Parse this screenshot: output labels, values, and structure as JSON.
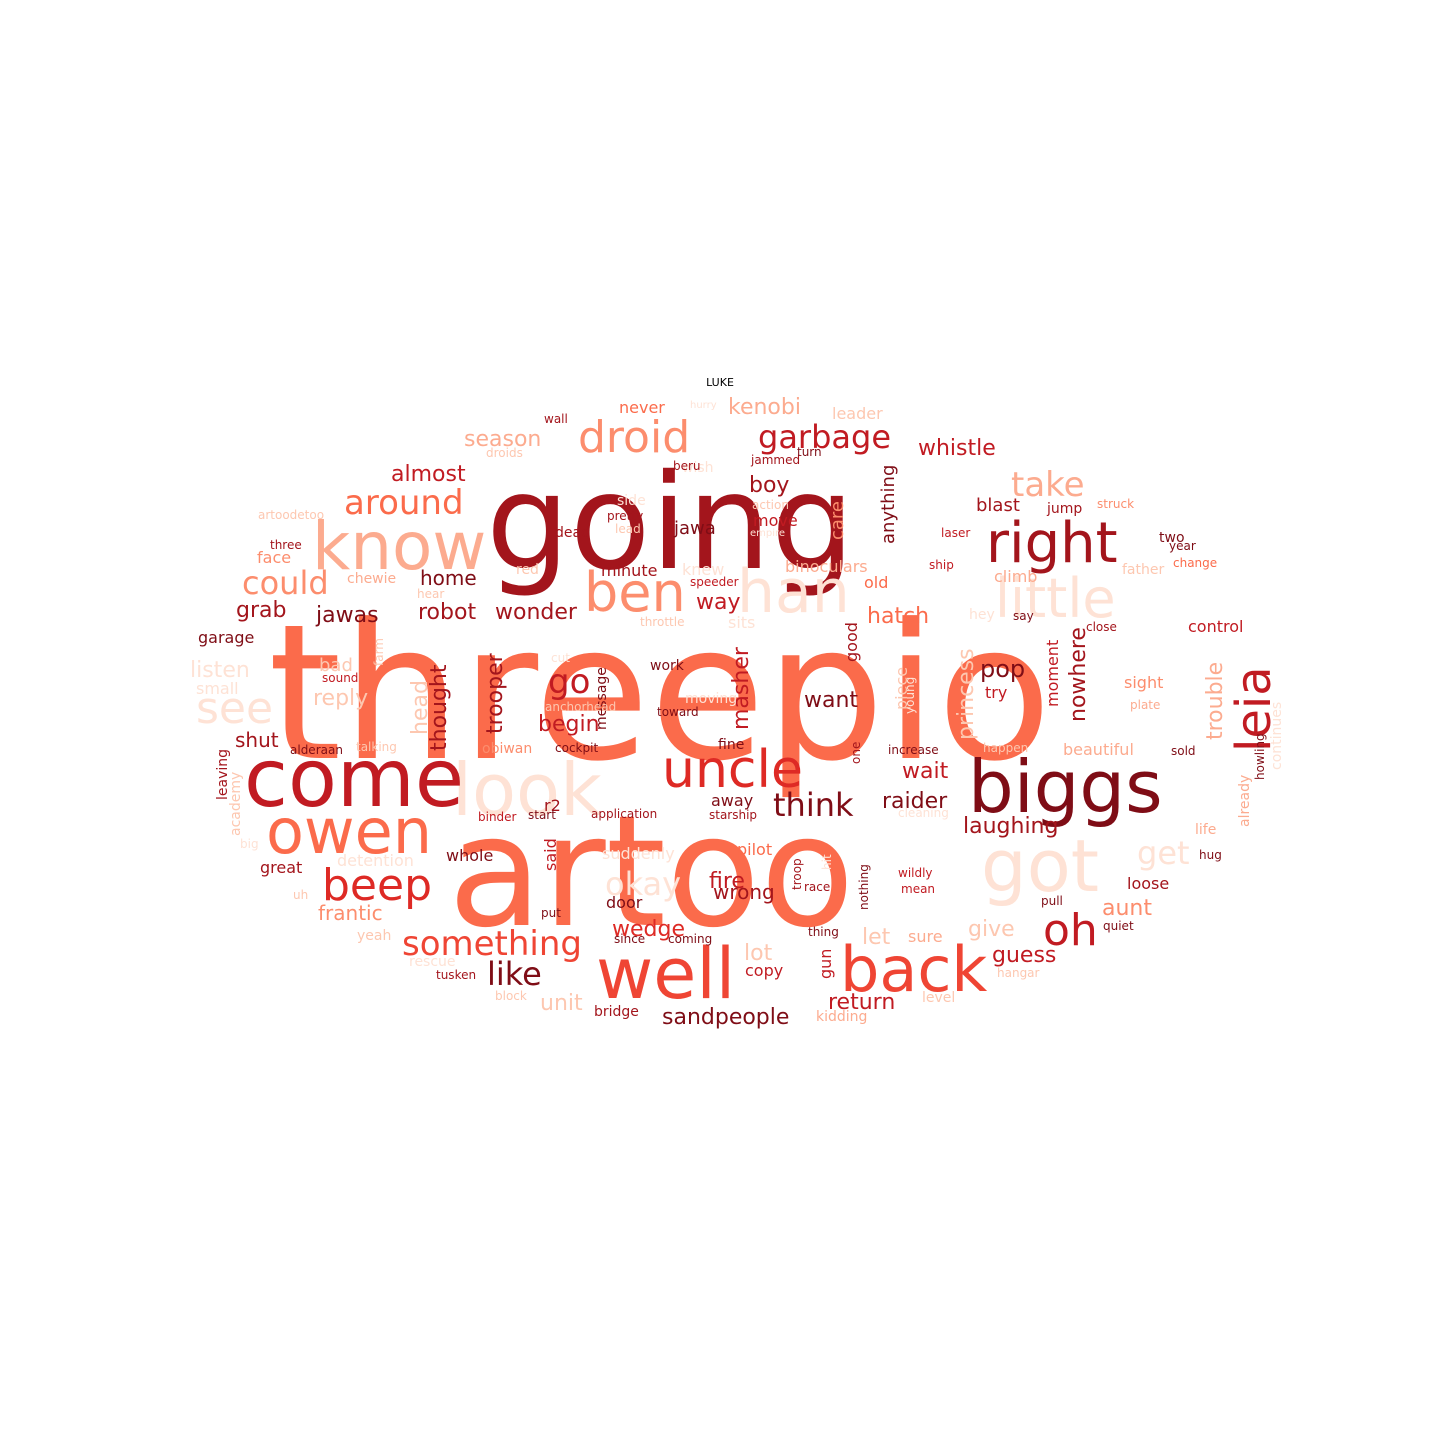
{
  "title": "LUKE",
  "palette": {
    "d1": "#7f0d16",
    "d2": "#a3151c",
    "d3": "#c11b22",
    "r1": "#de2a25",
    "r2": "#ef4534",
    "r3": "#fb6b4b",
    "s1": "#fc8d6d",
    "s2": "#fcab8f",
    "s3": "#fdc7b0",
    "p1": "#fee2d5"
  },
  "words": [
    {
      "text": "threepio",
      "color": "r3"
    },
    {
      "text": "artoo",
      "color": "r3"
    },
    {
      "text": "going",
      "color": "d2"
    },
    {
      "text": "look",
      "color": "p1"
    },
    {
      "text": "well",
      "color": "r2"
    },
    {
      "text": "know",
      "color": "s2"
    },
    {
      "text": "biggs",
      "color": "d1"
    },
    {
      "text": "come",
      "color": "d3"
    },
    {
      "text": "back",
      "color": "r2"
    },
    {
      "text": "han",
      "color": "p1"
    },
    {
      "text": "got",
      "color": "p1"
    },
    {
      "text": "owen",
      "color": "r3"
    },
    {
      "text": "little",
      "color": "p1"
    },
    {
      "text": "right",
      "color": "d2"
    },
    {
      "text": "uncle",
      "color": "r1"
    },
    {
      "text": "ben",
      "color": "s1"
    },
    {
      "text": "droid",
      "color": "s1"
    },
    {
      "text": "leia",
      "color": "d3"
    },
    {
      "text": "beep",
      "color": "r1"
    },
    {
      "text": "oh",
      "color": "d3"
    },
    {
      "text": "see",
      "color": "p1"
    },
    {
      "text": "around",
      "color": "r3"
    },
    {
      "text": "something",
      "color": "r2"
    },
    {
      "text": "garbage",
      "color": "d3"
    },
    {
      "text": "take",
      "color": "s2"
    },
    {
      "text": "think",
      "color": "d1"
    },
    {
      "text": "like",
      "color": "d1"
    },
    {
      "text": "go",
      "color": "d3"
    },
    {
      "text": "could",
      "color": "s1"
    },
    {
      "text": "okay",
      "color": "p1"
    },
    {
      "text": "get",
      "color": "p1"
    },
    {
      "text": "whistle",
      "color": "d3"
    },
    {
      "text": "return",
      "color": "d3"
    },
    {
      "text": "sandpeople",
      "color": "d1"
    },
    {
      "text": "raider",
      "color": "d1"
    },
    {
      "text": "laughing",
      "color": "d2"
    },
    {
      "text": "kenobi",
      "color": "s2"
    },
    {
      "text": "season",
      "color": "s2"
    },
    {
      "text": "almost",
      "color": "d3"
    },
    {
      "text": "boy",
      "color": "d2"
    },
    {
      "text": "hatch",
      "color": "r3"
    },
    {
      "text": "wonder",
      "color": "d2"
    },
    {
      "text": "robot",
      "color": "d2"
    },
    {
      "text": "jawas",
      "color": "d1"
    },
    {
      "text": "home",
      "color": "d1"
    },
    {
      "text": "way",
      "color": "d3"
    },
    {
      "text": "grab",
      "color": "d2"
    },
    {
      "text": "pop",
      "color": "d1"
    },
    {
      "text": "want",
      "color": "d1"
    },
    {
      "text": "begin",
      "color": "d3"
    },
    {
      "text": "wait",
      "color": "d3"
    },
    {
      "text": "trouble",
      "color": "s2"
    },
    {
      "text": "princess",
      "color": "s3"
    },
    {
      "text": "nowhere",
      "color": "d2"
    },
    {
      "text": "masher",
      "color": "d3"
    },
    {
      "text": "trooper",
      "color": "d2"
    },
    {
      "text": "thought",
      "color": "d2"
    },
    {
      "text": "head",
      "color": "s3"
    },
    {
      "text": "fire",
      "color": "d3"
    },
    {
      "text": "wrong",
      "color": "d2"
    },
    {
      "text": "lot",
      "color": "s3"
    },
    {
      "text": "wedge",
      "color": "r1"
    },
    {
      "text": "guess",
      "color": "d3"
    },
    {
      "text": "give",
      "color": "s3"
    },
    {
      "text": "aunt",
      "color": "s1"
    },
    {
      "text": "let",
      "color": "s3"
    },
    {
      "text": "unit",
      "color": "s3"
    },
    {
      "text": "frantic",
      "color": "s1"
    },
    {
      "text": "reply",
      "color": "s3"
    },
    {
      "text": "listen",
      "color": "p1"
    },
    {
      "text": "shut",
      "color": "d2"
    },
    {
      "text": "blast",
      "color": "d2"
    },
    {
      "text": "anything",
      "color": "d1"
    },
    {
      "text": "care",
      "color": "s1"
    },
    {
      "text": "jawa",
      "color": "d1"
    },
    {
      "text": "move",
      "color": "d3"
    },
    {
      "text": "minute",
      "color": "d2"
    },
    {
      "text": "binoculars",
      "color": "s2"
    },
    {
      "text": "away",
      "color": "d1"
    },
    {
      "text": "climb",
      "color": "s2"
    },
    {
      "text": "old",
      "color": "r3"
    },
    {
      "text": "knew",
      "color": "p1"
    },
    {
      "text": "said",
      "color": "d3"
    },
    {
      "text": "door",
      "color": "d1"
    },
    {
      "text": "copy",
      "color": "d3"
    },
    {
      "text": "gun",
      "color": "d3"
    },
    {
      "text": "sure",
      "color": "s2"
    },
    {
      "text": "pilot",
      "color": "r3"
    },
    {
      "text": "loose",
      "color": "d2"
    },
    {
      "text": "control",
      "color": "d3"
    },
    {
      "text": "sight",
      "color": "s1"
    },
    {
      "text": "try",
      "color": "d3"
    },
    {
      "text": "moment",
      "color": "d3"
    },
    {
      "text": "beautiful",
      "color": "s2"
    },
    {
      "text": "whole",
      "color": "d1"
    },
    {
      "text": "great",
      "color": "d2"
    },
    {
      "text": "face",
      "color": "s1"
    },
    {
      "text": "garage",
      "color": "d1"
    },
    {
      "text": "bad",
      "color": "s3"
    },
    {
      "text": "chewie",
      "color": "s2"
    },
    {
      "text": "red",
      "color": "s3"
    },
    {
      "text": "jump",
      "color": "d2"
    },
    {
      "text": "fine",
      "color": "d1"
    },
    {
      "text": "hey",
      "color": "p1"
    },
    {
      "text": "r2",
      "color": "d2"
    },
    {
      "text": "obiwan",
      "color": "s1"
    },
    {
      "text": "bridge",
      "color": "d2"
    },
    {
      "text": "yeah",
      "color": "s3"
    },
    {
      "text": "rescue",
      "color": "p1"
    },
    {
      "text": "detention",
      "color": "p1"
    },
    {
      "text": "suddenly",
      "color": "p1"
    },
    {
      "text": "sits",
      "color": "p1"
    },
    {
      "text": "wish",
      "color": "p1"
    },
    {
      "text": "small",
      "color": "p1"
    },
    {
      "text": "never",
      "color": "r3"
    },
    {
      "text": "leader",
      "color": "s3"
    },
    {
      "text": "good",
      "color": "d2"
    },
    {
      "text": "piece",
      "color": "s3"
    },
    {
      "text": "message",
      "color": "d1"
    },
    {
      "text": "leaving",
      "color": "d2"
    },
    {
      "text": "academy",
      "color": "s3"
    },
    {
      "text": "already",
      "color": "s2"
    },
    {
      "text": "continues",
      "color": "p1"
    },
    {
      "text": "two",
      "color": "d1"
    },
    {
      "text": "work",
      "color": "d1"
    },
    {
      "text": "dead",
      "color": "d2"
    },
    {
      "text": "life",
      "color": "s2"
    },
    {
      "text": "father",
      "color": "s3"
    },
    {
      "text": "wall",
      "color": "d2"
    },
    {
      "text": "three",
      "color": "d2"
    },
    {
      "text": "droids",
      "color": "s3"
    },
    {
      "text": "artoodetoo",
      "color": "s3"
    },
    {
      "text": "hurry",
      "color": "p1"
    },
    {
      "text": "beru",
      "color": "d2"
    },
    {
      "text": "jammed",
      "color": "d2"
    },
    {
      "text": "turn",
      "color": "d1"
    },
    {
      "text": "action",
      "color": "s3"
    },
    {
      "text": "empire",
      "color": "p1"
    },
    {
      "text": "side",
      "color": "p1"
    },
    {
      "text": "lead",
      "color": "s3"
    },
    {
      "text": "pretty",
      "color": "d2"
    },
    {
      "text": "struck",
      "color": "s1"
    },
    {
      "text": "laser",
      "color": "d3"
    },
    {
      "text": "ship",
      "color": "d3"
    },
    {
      "text": "year",
      "color": "d1"
    },
    {
      "text": "change",
      "color": "r3"
    },
    {
      "text": "say",
      "color": "d1"
    },
    {
      "text": "close",
      "color": "d2"
    },
    {
      "text": "speeder",
      "color": "d3"
    },
    {
      "text": "throttle",
      "color": "s3"
    },
    {
      "text": "cut",
      "color": "p1"
    },
    {
      "text": "hear",
      "color": "s3"
    },
    {
      "text": "farm",
      "color": "s3"
    },
    {
      "text": "sound",
      "color": "d3"
    },
    {
      "text": "moving",
      "color": "p1"
    },
    {
      "text": "toward",
      "color": "d1"
    },
    {
      "text": "anchorhead",
      "color": "s3"
    },
    {
      "text": "alderaan",
      "color": "d1"
    },
    {
      "text": "talking",
      "color": "s3"
    },
    {
      "text": "cockpit",
      "color": "d1"
    },
    {
      "text": "increase",
      "color": "d1"
    },
    {
      "text": "happen",
      "color": "s3"
    },
    {
      "text": "sold",
      "color": "d1"
    },
    {
      "text": "plate",
      "color": "s2"
    },
    {
      "text": "howling",
      "color": "d1"
    },
    {
      "text": "one",
      "color": "d2"
    },
    {
      "text": "young",
      "color": "p1"
    },
    {
      "text": "binder",
      "color": "d3"
    },
    {
      "text": "start",
      "color": "d1"
    },
    {
      "text": "application",
      "color": "d2"
    },
    {
      "text": "starship",
      "color": "d2"
    },
    {
      "text": "cleaning",
      "color": "p1"
    },
    {
      "text": "hug",
      "color": "d1"
    },
    {
      "text": "big",
      "color": "p1"
    },
    {
      "text": "uh",
      "color": "s3"
    },
    {
      "text": "put",
      "color": "d1"
    },
    {
      "text": "since",
      "color": "d1"
    },
    {
      "text": "coming",
      "color": "d1"
    },
    {
      "text": "thing",
      "color": "d1"
    },
    {
      "text": "troop",
      "color": "d2"
    },
    {
      "text": "hit",
      "color": "p1"
    },
    {
      "text": "race",
      "color": "d2"
    },
    {
      "text": "nothing",
      "color": "d1"
    },
    {
      "text": "wildly",
      "color": "d3"
    },
    {
      "text": "mean",
      "color": "d3"
    },
    {
      "text": "pull",
      "color": "d1"
    },
    {
      "text": "quiet",
      "color": "d1"
    },
    {
      "text": "hangar",
      "color": "s3"
    },
    {
      "text": "tusken",
      "color": "d2"
    },
    {
      "text": "block",
      "color": "s3"
    },
    {
      "text": "kidding",
      "color": "s2"
    },
    {
      "text": "level",
      "color": "s3"
    }
  ]
}
